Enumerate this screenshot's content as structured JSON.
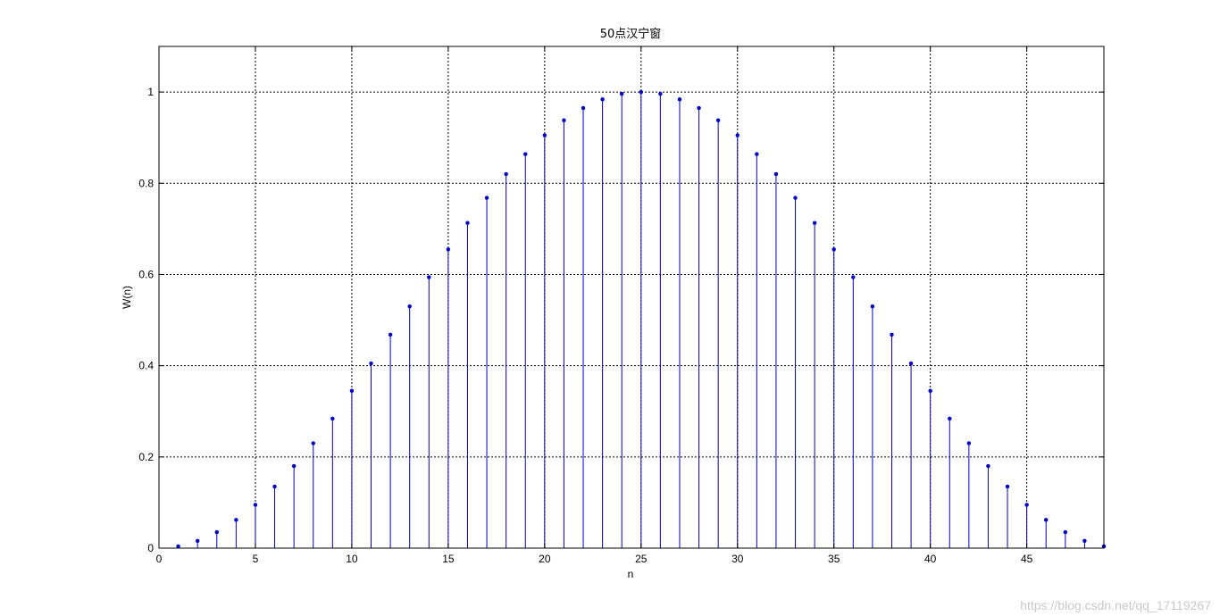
{
  "chart_data": {
    "type": "stem",
    "title": "50点汉宁窗",
    "xlabel": "n",
    "ylabel": "W(n)",
    "xlim": [
      0,
      49
    ],
    "ylim": [
      0,
      1.1
    ],
    "xticks": [
      0,
      5,
      10,
      15,
      20,
      25,
      30,
      35,
      40,
      45
    ],
    "yticks": [
      0,
      0.2,
      0.4,
      0.6,
      0.8,
      1
    ],
    "xtick_labels": [
      "0",
      "5",
      "10",
      "15",
      "20",
      "25",
      "30",
      "35",
      "40",
      "45"
    ],
    "ytick_labels": [
      "0",
      "0.2",
      "0.4",
      "0.6",
      "0.8",
      "1"
    ],
    "grid": true,
    "color": "#0000cc",
    "x": [
      1,
      2,
      3,
      4,
      5,
      6,
      7,
      8,
      9,
      10,
      11,
      12,
      13,
      14,
      15,
      16,
      17,
      18,
      19,
      20,
      21,
      22,
      23,
      24,
      25,
      26,
      27,
      28,
      29,
      30,
      31,
      32,
      33,
      34,
      35,
      36,
      37,
      38,
      39,
      40,
      41,
      42,
      43,
      44,
      45,
      46,
      47,
      48,
      49
    ],
    "values": [
      0.004,
      0.016,
      0.035,
      0.062,
      0.095,
      0.135,
      0.18,
      0.23,
      0.284,
      0.345,
      0.405,
      0.468,
      0.53,
      0.594,
      0.655,
      0.713,
      0.768,
      0.82,
      0.864,
      0.905,
      0.938,
      0.965,
      0.984,
      0.996,
      1.0,
      0.996,
      0.984,
      0.965,
      0.938,
      0.905,
      0.864,
      0.82,
      0.768,
      0.713,
      0.655,
      0.594,
      0.53,
      0.468,
      0.405,
      0.345,
      0.284,
      0.23,
      0.18,
      0.135,
      0.095,
      0.062,
      0.035,
      0.016,
      0.004
    ]
  },
  "watermark": "https://blog.csdn.net/qq_17119267"
}
